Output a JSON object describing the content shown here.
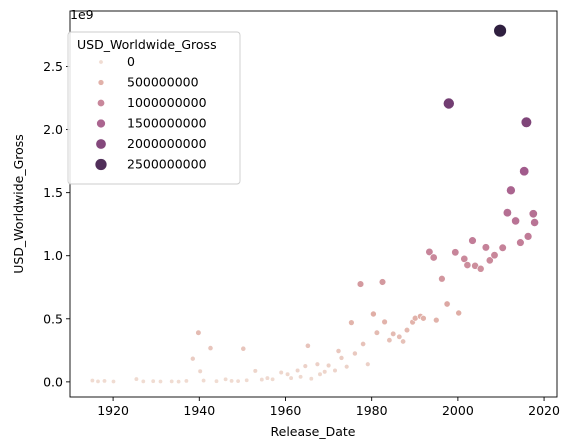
{
  "chart_data": {
    "type": "scatter",
    "xlabel": "Release_Date",
    "ylabel": "USD_Worldwide_Gross",
    "y_offset_label": "1e9",
    "xlim": [
      1910,
      2023
    ],
    "ylim": [
      -120000000,
      2940000000
    ],
    "x_ticks": [
      1920,
      1940,
      1960,
      1980,
      2000,
      2020
    ],
    "x_tick_labels": [
      "1920",
      "1940",
      "1960",
      "1980",
      "2000",
      "2020"
    ],
    "y_ticks": [
      0,
      500000000,
      1000000000,
      1500000000,
      2000000000,
      2500000000
    ],
    "y_tick_labels": [
      "0.0",
      "0.5",
      "1.0",
      "1.5",
      "2.0",
      "2.5"
    ],
    "grid": false,
    "legend": {
      "title": "USD_Worldwide_Gross",
      "placement": "top-left",
      "entries": [
        {
          "label": "0",
          "value": 0
        },
        {
          "label": "500000000",
          "value": 500000000
        },
        {
          "label": "1000000000",
          "value": 1000000000
        },
        {
          "label": "1500000000",
          "value": 1500000000
        },
        {
          "label": "2000000000",
          "value": 2000000000
        },
        {
          "label": "2500000000",
          "value": 2500000000
        }
      ]
    },
    "hue_colors": [
      "#f0dcd2",
      "#dfaca4",
      "#c27d98",
      "#a05a8c",
      "#6f3b70",
      "#2d1e3e"
    ],
    "hue_range": [
      0,
      2800000000
    ],
    "points": [
      {
        "x": 1915.2,
        "y": 11000000
      },
      {
        "x": 1916.5,
        "y": 4000000
      },
      {
        "x": 1918.0,
        "y": 8000000
      },
      {
        "x": 1920.1,
        "y": 3000000
      },
      {
        "x": 1925.4,
        "y": 22000000
      },
      {
        "x": 1927.0,
        "y": 4000000
      },
      {
        "x": 1929.3,
        "y": 5000000
      },
      {
        "x": 1931.0,
        "y": 3000000
      },
      {
        "x": 1933.6,
        "y": 4000000
      },
      {
        "x": 1935.2,
        "y": 2000000
      },
      {
        "x": 1937.0,
        "y": 8000000
      },
      {
        "x": 1938.5,
        "y": 184000000
      },
      {
        "x": 1939.8,
        "y": 390000000
      },
      {
        "x": 1940.2,
        "y": 84000000
      },
      {
        "x": 1941.0,
        "y": 10000000
      },
      {
        "x": 1942.6,
        "y": 268000000
      },
      {
        "x": 1944.0,
        "y": 5000000
      },
      {
        "x": 1946.1,
        "y": 20000000
      },
      {
        "x": 1947.5,
        "y": 8000000
      },
      {
        "x": 1949.0,
        "y": 6000000
      },
      {
        "x": 1950.2,
        "y": 263000000
      },
      {
        "x": 1951.0,
        "y": 12000000
      },
      {
        "x": 1953.0,
        "y": 87000000
      },
      {
        "x": 1954.5,
        "y": 18000000
      },
      {
        "x": 1955.8,
        "y": 30000000
      },
      {
        "x": 1957.0,
        "y": 20000000
      },
      {
        "x": 1959.0,
        "y": 74000000
      },
      {
        "x": 1960.5,
        "y": 60000000
      },
      {
        "x": 1961.3,
        "y": 30000000
      },
      {
        "x": 1962.8,
        "y": 90000000
      },
      {
        "x": 1963.5,
        "y": 40000000
      },
      {
        "x": 1964.6,
        "y": 125000000
      },
      {
        "x": 1965.2,
        "y": 286000000
      },
      {
        "x": 1966.0,
        "y": 25000000
      },
      {
        "x": 1967.4,
        "y": 140000000
      },
      {
        "x": 1968.0,
        "y": 60000000
      },
      {
        "x": 1969.1,
        "y": 80000000
      },
      {
        "x": 1970.0,
        "y": 130000000
      },
      {
        "x": 1971.5,
        "y": 90000000
      },
      {
        "x": 1972.3,
        "y": 245000000
      },
      {
        "x": 1973.0,
        "y": 190000000
      },
      {
        "x": 1974.2,
        "y": 120000000
      },
      {
        "x": 1975.3,
        "y": 470000000
      },
      {
        "x": 1976.1,
        "y": 225000000
      },
      {
        "x": 1977.4,
        "y": 775000000
      },
      {
        "x": 1978.0,
        "y": 300000000
      },
      {
        "x": 1979.1,
        "y": 140000000
      },
      {
        "x": 1980.4,
        "y": 538000000
      },
      {
        "x": 1981.2,
        "y": 390000000
      },
      {
        "x": 1982.5,
        "y": 792000000
      },
      {
        "x": 1983.0,
        "y": 475000000
      },
      {
        "x": 1984.1,
        "y": 330000000
      },
      {
        "x": 1985.0,
        "y": 380000000
      },
      {
        "x": 1986.4,
        "y": 357000000
      },
      {
        "x": 1987.3,
        "y": 320000000
      },
      {
        "x": 1988.2,
        "y": 410000000
      },
      {
        "x": 1989.5,
        "y": 474000000
      },
      {
        "x": 1990.1,
        "y": 505000000
      },
      {
        "x": 1991.3,
        "y": 520000000
      },
      {
        "x": 1992.0,
        "y": 504000000
      },
      {
        "x": 1993.4,
        "y": 1030000000
      },
      {
        "x": 1994.4,
        "y": 986000000
      },
      {
        "x": 1995.0,
        "y": 490000000
      },
      {
        "x": 1996.3,
        "y": 817000000
      },
      {
        "x": 1997.5,
        "y": 617000000
      },
      {
        "x": 1997.9,
        "y": 2207000000
      },
      {
        "x": 1999.4,
        "y": 1027000000
      },
      {
        "x": 2000.2,
        "y": 546000000
      },
      {
        "x": 2001.5,
        "y": 975000000
      },
      {
        "x": 2002.2,
        "y": 926000000
      },
      {
        "x": 2003.4,
        "y": 1120000000
      },
      {
        "x": 2004.0,
        "y": 920000000
      },
      {
        "x": 2005.3,
        "y": 896000000
      },
      {
        "x": 2006.5,
        "y": 1066000000
      },
      {
        "x": 2007.4,
        "y": 963000000
      },
      {
        "x": 2008.5,
        "y": 1004000000
      },
      {
        "x": 2009.8,
        "y": 2784000000
      },
      {
        "x": 2010.4,
        "y": 1063000000
      },
      {
        "x": 2011.5,
        "y": 1341000000
      },
      {
        "x": 2012.3,
        "y": 1519000000
      },
      {
        "x": 2013.4,
        "y": 1276000000
      },
      {
        "x": 2014.5,
        "y": 1104000000
      },
      {
        "x": 2015.4,
        "y": 1670000000
      },
      {
        "x": 2015.9,
        "y": 2058000000
      },
      {
        "x": 2016.3,
        "y": 1153000000
      },
      {
        "x": 2017.5,
        "y": 1332000000
      },
      {
        "x": 2017.8,
        "y": 1263000000
      }
    ]
  }
}
